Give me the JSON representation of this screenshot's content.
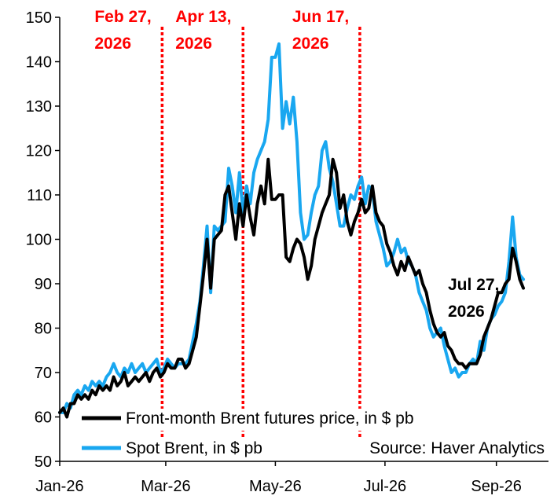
{
  "chart_data": {
    "type": "line",
    "ylim": [
      50,
      150
    ],
    "yticks": [
      "50",
      "60",
      "70",
      "80",
      "90",
      "100",
      "110",
      "120",
      "130",
      "140",
      "150"
    ],
    "xticks": [
      {
        "date": "2026-01-01",
        "label": "Jan-26"
      },
      {
        "date": "2026-03-01",
        "label": "Mar-26"
      },
      {
        "date": "2026-05-01",
        "label": "May-26"
      },
      {
        "date": "2026-07-01",
        "label": "Jul-26"
      },
      {
        "date": "2026-09-01",
        "label": "Sep-26"
      }
    ],
    "xlim": [
      "2026-01-01",
      "2026-09-30"
    ],
    "series": [
      {
        "name": "Front-month Brent futures price, in $ pb",
        "color": "#000000",
        "x": [
          "2026-01-01",
          "2026-01-04",
          "2026-01-07",
          "2026-01-10",
          "2026-01-13",
          "2026-01-16",
          "2026-01-19",
          "2026-01-22",
          "2026-01-25",
          "2026-01-28",
          "2026-01-31",
          "2026-02-03",
          "2026-02-06",
          "2026-02-09",
          "2026-02-12",
          "2026-02-15",
          "2026-02-18",
          "2026-02-21",
          "2026-02-24",
          "2026-02-27",
          "2026-03-02",
          "2026-03-05",
          "2026-03-08",
          "2026-03-11",
          "2026-03-14",
          "2026-03-17",
          "2026-03-20",
          "2026-03-23",
          "2026-03-26",
          "2026-03-29",
          "2026-04-01",
          "2026-04-04",
          "2026-04-07",
          "2026-04-10",
          "2026-04-13",
          "2026-04-16",
          "2026-04-19",
          "2026-04-22",
          "2026-04-25",
          "2026-04-28",
          "2026-05-01",
          "2026-05-04",
          "2026-05-07",
          "2026-05-10",
          "2026-05-13",
          "2026-05-16",
          "2026-05-19",
          "2026-05-22",
          "2026-05-25",
          "2026-05-28",
          "2026-05-31",
          "2026-06-03",
          "2026-06-06",
          "2026-06-09",
          "2026-06-12",
          "2026-06-15",
          "2026-06-18",
          "2026-06-21",
          "2026-06-24",
          "2026-06-27",
          "2026-06-30",
          "2026-07-03",
          "2026-07-06",
          "2026-07-09",
          "2026-07-12",
          "2026-07-15",
          "2026-07-18",
          "2026-07-21",
          "2026-07-24",
          "2026-07-27"
        ],
        "values": [
          61,
          62,
          62,
          63,
          64,
          65,
          65,
          67,
          68,
          67,
          68,
          69,
          68,
          69,
          70,
          69,
          71,
          71,
          72,
          72,
          73,
          84,
          100,
          110,
          108,
          104,
          115,
          112,
          109,
          110,
          97,
          96,
          98,
          95,
          96,
          92,
          99,
          105,
          110,
          114,
          105,
          104,
          102,
          108,
          111,
          108,
          105,
          100,
          97,
          94,
          93,
          92,
          94,
          88,
          82,
          80,
          77,
          74,
          72,
          72,
          72,
          72,
          74,
          78,
          82,
          85,
          88,
          90,
          92,
          89
        ],
        "raw": [
          [
            0,
            61
          ],
          [
            2,
            62
          ],
          [
            4,
            60
          ],
          [
            6,
            63
          ],
          [
            8,
            63
          ],
          [
            10,
            65
          ],
          [
            12,
            64
          ],
          [
            14,
            65
          ],
          [
            16,
            64
          ],
          [
            18,
            66
          ],
          [
            20,
            65
          ],
          [
            22,
            67
          ],
          [
            24,
            66
          ],
          [
            26,
            67
          ],
          [
            28,
            66
          ],
          [
            30,
            69
          ],
          [
            32,
            67
          ],
          [
            34,
            68
          ],
          [
            36,
            70
          ],
          [
            38,
            67
          ],
          [
            40,
            68
          ],
          [
            42,
            69
          ],
          [
            44,
            68
          ],
          [
            46,
            69
          ],
          [
            48,
            70
          ],
          [
            50,
            68
          ],
          [
            52,
            70
          ],
          [
            54,
            71
          ],
          [
            56,
            69
          ],
          [
            58,
            70
          ],
          [
            60,
            72
          ],
          [
            62,
            71
          ],
          [
            64,
            71
          ],
          [
            66,
            73
          ],
          [
            68,
            73
          ],
          [
            70,
            71
          ],
          [
            72,
            72
          ],
          [
            74,
            75
          ],
          [
            76,
            78
          ],
          [
            78,
            85
          ],
          [
            80,
            92
          ],
          [
            82,
            100
          ],
          [
            84,
            89
          ],
          [
            86,
            100
          ],
          [
            88,
            101
          ],
          [
            90,
            102
          ],
          [
            92,
            110
          ],
          [
            94,
            112
          ],
          [
            96,
            106
          ],
          [
            98,
            100
          ],
          [
            100,
            108
          ],
          [
            102,
            103
          ],
          [
            104,
            110
          ],
          [
            106,
            105
          ],
          [
            108,
            101
          ],
          [
            110,
            108
          ],
          [
            112,
            112
          ],
          [
            114,
            108
          ],
          [
            116,
            118
          ],
          [
            118,
            109
          ],
          [
            120,
            109
          ],
          [
            122,
            110
          ],
          [
            124,
            110
          ],
          [
            126,
            96
          ],
          [
            128,
            95
          ],
          [
            130,
            98
          ],
          [
            132,
            100
          ],
          [
            134,
            99
          ],
          [
            136,
            96
          ],
          [
            138,
            91
          ],
          [
            140,
            94
          ],
          [
            142,
            100
          ],
          [
            144,
            103
          ],
          [
            146,
            106
          ],
          [
            148,
            108
          ],
          [
            150,
            110
          ],
          [
            152,
            118
          ],
          [
            154,
            115
          ],
          [
            156,
            107
          ],
          [
            158,
            110
          ],
          [
            160,
            104
          ],
          [
            162,
            101
          ],
          [
            164,
            104
          ],
          [
            166,
            106
          ],
          [
            168,
            109
          ],
          [
            170,
            106
          ],
          [
            172,
            107
          ],
          [
            174,
            112
          ],
          [
            176,
            106
          ],
          [
            178,
            104
          ],
          [
            180,
            103
          ],
          [
            182,
            99
          ],
          [
            184,
            97
          ],
          [
            186,
            94
          ],
          [
            188,
            92
          ],
          [
            190,
            95
          ],
          [
            192,
            93
          ],
          [
            194,
            96
          ],
          [
            196,
            94
          ],
          [
            198,
            92
          ],
          [
            200,
            93
          ],
          [
            202,
            90
          ],
          [
            204,
            88
          ],
          [
            206,
            84
          ],
          [
            208,
            81
          ],
          [
            210,
            79
          ],
          [
            212,
            78
          ],
          [
            214,
            79
          ],
          [
            216,
            76
          ],
          [
            218,
            75
          ],
          [
            220,
            73
          ],
          [
            222,
            72
          ],
          [
            224,
            72
          ],
          [
            226,
            71
          ],
          [
            228,
            72
          ],
          [
            230,
            72
          ],
          [
            232,
            72
          ],
          [
            234,
            74
          ],
          [
            236,
            78
          ],
          [
            238,
            80
          ],
          [
            240,
            82
          ],
          [
            242,
            85
          ],
          [
            244,
            88
          ],
          [
            246,
            88
          ],
          [
            248,
            90
          ],
          [
            250,
            91
          ],
          [
            252,
            98
          ],
          [
            254,
            95
          ],
          [
            256,
            91
          ],
          [
            258,
            89
          ]
        ]
      },
      {
        "name": "Spot Brent, in $ pb",
        "color": "#19a7f0",
        "raw": [
          [
            0,
            61
          ],
          [
            2,
            61
          ],
          [
            4,
            63
          ],
          [
            6,
            62
          ],
          [
            8,
            65
          ],
          [
            10,
            66
          ],
          [
            12,
            65
          ],
          [
            14,
            67
          ],
          [
            16,
            66
          ],
          [
            18,
            68
          ],
          [
            20,
            67
          ],
          [
            22,
            68
          ],
          [
            24,
            67
          ],
          [
            26,
            69
          ],
          [
            28,
            70
          ],
          [
            30,
            72
          ],
          [
            32,
            70
          ],
          [
            34,
            69
          ],
          [
            36,
            71
          ],
          [
            38,
            70
          ],
          [
            40,
            72
          ],
          [
            42,
            70
          ],
          [
            44,
            71
          ],
          [
            46,
            72
          ],
          [
            48,
            70
          ],
          [
            50,
            71
          ],
          [
            52,
            72
          ],
          [
            54,
            73
          ],
          [
            56,
            70
          ],
          [
            58,
            71
          ],
          [
            60,
            73
          ],
          [
            62,
            72
          ],
          [
            64,
            71
          ],
          [
            66,
            72
          ],
          [
            68,
            72
          ],
          [
            70,
            72
          ],
          [
            72,
            73
          ],
          [
            74,
            77
          ],
          [
            76,
            81
          ],
          [
            78,
            86
          ],
          [
            80,
            94
          ],
          [
            82,
            103
          ],
          [
            84,
            88
          ],
          [
            86,
            103
          ],
          [
            88,
            102
          ],
          [
            90,
            103
          ],
          [
            92,
            104
          ],
          [
            94,
            116
          ],
          [
            96,
            112
          ],
          [
            98,
            106
          ],
          [
            100,
            115
          ],
          [
            102,
            106
          ],
          [
            104,
            112
          ],
          [
            106,
            108
          ],
          [
            108,
            115
          ],
          [
            110,
            118
          ],
          [
            112,
            120
          ],
          [
            114,
            122
          ],
          [
            116,
            127
          ],
          [
            118,
            141
          ],
          [
            120,
            141
          ],
          [
            122,
            144
          ],
          [
            124,
            125
          ],
          [
            126,
            131
          ],
          [
            128,
            126
          ],
          [
            130,
            132
          ],
          [
            132,
            122
          ],
          [
            134,
            106
          ],
          [
            136,
            100
          ],
          [
            138,
            101
          ],
          [
            140,
            106
          ],
          [
            142,
            110
          ],
          [
            144,
            112
          ],
          [
            146,
            120
          ],
          [
            148,
            122
          ],
          [
            150,
            116
          ],
          [
            152,
            113
          ],
          [
            154,
            108
          ],
          [
            156,
            103
          ],
          [
            158,
            103
          ],
          [
            160,
            107
          ],
          [
            162,
            110
          ],
          [
            164,
            109
          ],
          [
            166,
            112
          ],
          [
            168,
            114
          ],
          [
            170,
            108
          ],
          [
            172,
            112
          ],
          [
            174,
            111
          ],
          [
            176,
            104
          ],
          [
            178,
            101
          ],
          [
            180,
            98
          ],
          [
            182,
            94
          ],
          [
            184,
            95
          ],
          [
            186,
            97
          ],
          [
            188,
            100
          ],
          [
            190,
            97
          ],
          [
            192,
            98
          ],
          [
            194,
            95
          ],
          [
            196,
            94
          ],
          [
            198,
            92
          ],
          [
            200,
            88
          ],
          [
            202,
            86
          ],
          [
            204,
            84
          ],
          [
            206,
            80
          ],
          [
            208,
            78
          ],
          [
            210,
            79
          ],
          [
            212,
            80
          ],
          [
            214,
            76
          ],
          [
            216,
            73
          ],
          [
            218,
            70
          ],
          [
            220,
            71
          ],
          [
            222,
            69
          ],
          [
            224,
            70
          ],
          [
            226,
            70
          ],
          [
            228,
            72
          ],
          [
            230,
            73
          ],
          [
            232,
            72
          ],
          [
            234,
            77
          ],
          [
            236,
            75
          ],
          [
            238,
            80
          ],
          [
            240,
            82
          ],
          [
            242,
            83
          ],
          [
            244,
            85
          ],
          [
            246,
            86
          ],
          [
            248,
            88
          ],
          [
            250,
            95
          ],
          [
            252,
            105
          ],
          [
            254,
            96
          ],
          [
            256,
            92
          ],
          [
            258,
            91
          ]
        ]
      }
    ],
    "vlines": [
      {
        "date": "2026-02-27",
        "label_line1": "Feb 27,",
        "label_line2": "2026",
        "color": "#ff0000"
      },
      {
        "date": "2026-04-13",
        "label_line1": "Apr 13,",
        "label_line2": "2026",
        "color": "#ff0000"
      },
      {
        "date": "2026-06-17",
        "label_line1": "Jun 17,",
        "label_line2": "2026",
        "color": "#ff0000"
      }
    ],
    "end_label": {
      "line1": "Jul 27,",
      "line2": "2026"
    },
    "legend": {
      "placement": "bottom-left",
      "entries": [
        "Front-month Brent futures price, in $ pb",
        "Spot Brent, in $ pb"
      ]
    },
    "source": "Source: Haver Analytics",
    "grid": false
  }
}
